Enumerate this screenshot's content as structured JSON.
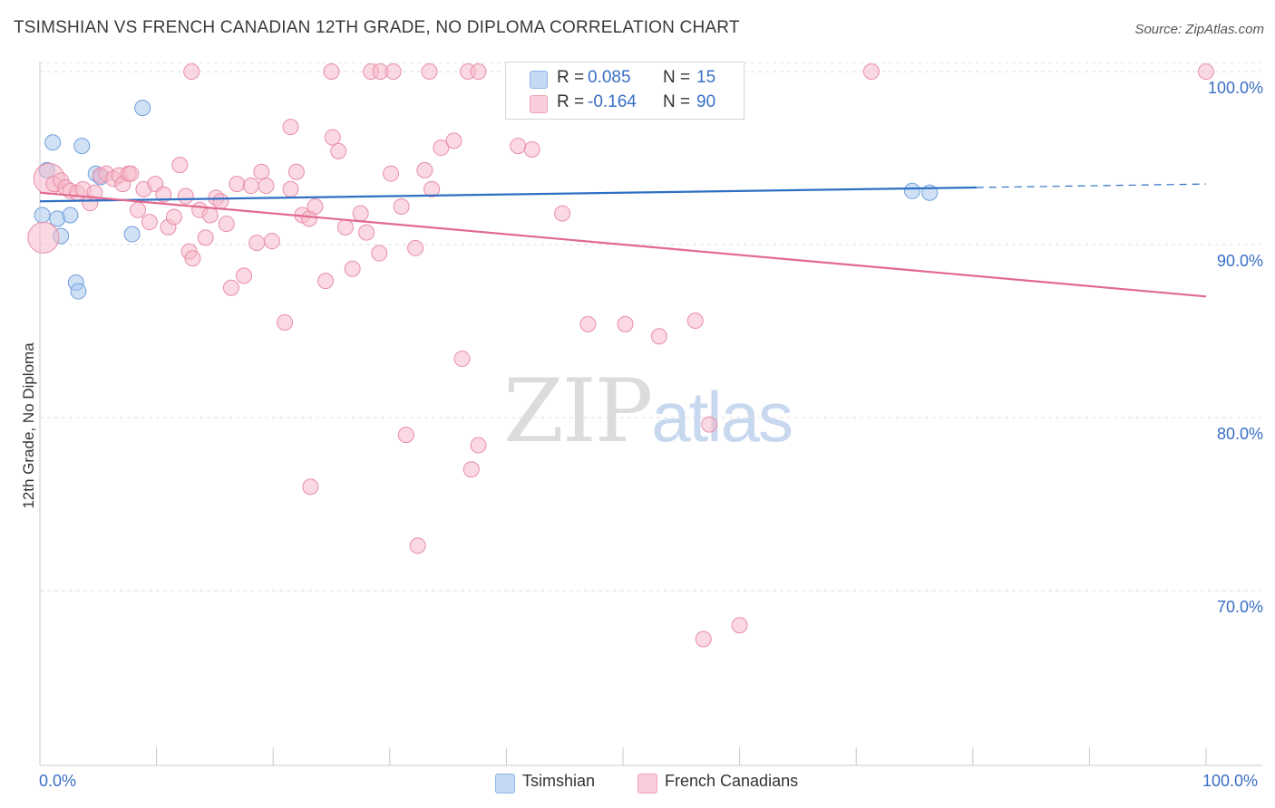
{
  "header": {
    "title": "TSIMSHIAN VS FRENCH CANADIAN 12TH GRADE, NO DIPLOMA CORRELATION CHART",
    "source": "Source: ZipAtlas.com"
  },
  "watermark": {
    "zip": "ZIP",
    "atlas": "atlas"
  },
  "legend_box": {
    "rows": [
      {
        "r_label": "R =",
        "r_value": "0.085",
        "n_label": "N =",
        "n_value": "15",
        "color": "#a9c8ee"
      },
      {
        "r_label": "R =",
        "r_value": "-0.164",
        "n_label": "N =",
        "n_value": "90",
        "color": "#f6b9cb"
      }
    ]
  },
  "bottom_legend": [
    {
      "label": "Tsimshian",
      "color": "#a9c8ee"
    },
    {
      "label": "French Canadians",
      "color": "#f6b9cb"
    }
  ],
  "chart_data": {
    "type": "scatter",
    "title": "TSIMSHIAN VS FRENCH CANADIAN 12TH GRADE, NO DIPLOMA CORRELATION CHART",
    "xlabel": "",
    "ylabel": "12th Grade, No Diploma",
    "xlim": [
      0,
      100
    ],
    "ylim": [
      60,
      100.5
    ],
    "x_tick_labels": [
      "0.0%",
      "100.0%"
    ],
    "y_ticks": [
      {
        "value": 100,
        "label": "100.0%"
      },
      {
        "value": 90,
        "label": "90.0%"
      },
      {
        "value": 80,
        "label": "80.0%"
      },
      {
        "value": 70,
        "label": "70.0%"
      }
    ],
    "grid": true,
    "legend_position": "top-center",
    "series": [
      {
        "name": "Tsimshian",
        "color": "#a9c8ee",
        "stroke": "#6f9fdc",
        "trend_color": "#2f6fc4",
        "trend": {
          "x": [
            0,
            80.3
          ],
          "y": [
            92.5,
            93.3
          ],
          "dashed_to": [
            100,
            93.5
          ]
        },
        "points": [
          [
            0.2,
            91.7
          ],
          [
            0.6,
            94.3
          ],
          [
            1.1,
            95.9
          ],
          [
            1.5,
            91.5
          ],
          [
            1.8,
            90.5
          ],
          [
            2.6,
            91.7
          ],
          [
            3.1,
            87.8
          ],
          [
            3.3,
            87.3
          ],
          [
            3.6,
            95.7
          ],
          [
            4.8,
            94.1
          ],
          [
            5.2,
            93.9
          ],
          [
            7.9,
            90.6
          ],
          [
            8.8,
            97.9
          ],
          [
            74.8,
            93.1
          ],
          [
            76.3,
            93.0
          ]
        ]
      },
      {
        "name": "French Canadians",
        "color": "#f6b9cb",
        "stroke": "#e98daa",
        "trend_color": "#e2698f",
        "trend": {
          "x": [
            0,
            100
          ],
          "y": [
            93.0,
            87.0
          ]
        },
        "points": [
          [
            0.3,
            90.4
          ],
          [
            0.8,
            93.8
          ],
          [
            1.2,
            93.5
          ],
          [
            1.8,
            93.7
          ],
          [
            2.2,
            93.3
          ],
          [
            2.6,
            93.1
          ],
          [
            3.2,
            93.0
          ],
          [
            3.7,
            93.2
          ],
          [
            4.3,
            92.4
          ],
          [
            4.7,
            93.0
          ],
          [
            5.2,
            94.0
          ],
          [
            5.7,
            94.1
          ],
          [
            6.3,
            93.8
          ],
          [
            6.8,
            94.0
          ],
          [
            7.1,
            93.5
          ],
          [
            7.6,
            94.1
          ],
          [
            8.4,
            92.0
          ],
          [
            8.9,
            93.2
          ],
          [
            9.4,
            91.3
          ],
          [
            9.9,
            93.5
          ],
          [
            10.6,
            92.9
          ],
          [
            11.0,
            91.0
          ],
          [
            11.5,
            91.6
          ],
          [
            12.0,
            94.6
          ],
          [
            12.5,
            92.8
          ],
          [
            12.8,
            89.6
          ],
          [
            13.1,
            89.2
          ],
          [
            13.7,
            92.0
          ],
          [
            14.2,
            90.4
          ],
          [
            14.6,
            91.7
          ],
          [
            15.1,
            92.7
          ],
          [
            15.5,
            92.5
          ],
          [
            16.0,
            91.2
          ],
          [
            16.4,
            87.5
          ],
          [
            16.9,
            93.5
          ],
          [
            17.5,
            88.2
          ],
          [
            18.1,
            93.4
          ],
          [
            18.6,
            90.1
          ],
          [
            19.0,
            94.2
          ],
          [
            19.4,
            93.4
          ],
          [
            19.9,
            90.2
          ],
          [
            21.0,
            85.5
          ],
          [
            21.5,
            93.2
          ],
          [
            22.0,
            94.2
          ],
          [
            22.5,
            91.7
          ],
          [
            23.1,
            91.5
          ],
          [
            23.6,
            92.2
          ],
          [
            24.5,
            87.9
          ],
          [
            25.1,
            96.2
          ],
          [
            25.6,
            95.4
          ],
          [
            26.2,
            91.0
          ],
          [
            26.8,
            88.6
          ],
          [
            27.5,
            91.8
          ],
          [
            28.0,
            90.7
          ],
          [
            29.1,
            89.5
          ],
          [
            30.1,
            94.1
          ],
          [
            31.0,
            92.2
          ],
          [
            32.2,
            89.8
          ],
          [
            33.0,
            94.3
          ],
          [
            33.6,
            93.2
          ],
          [
            34.4,
            95.6
          ],
          [
            35.5,
            96.0
          ],
          [
            36.2,
            83.4
          ],
          [
            37.0,
            77.0
          ],
          [
            37.6,
            78.4
          ],
          [
            32.4,
            72.6
          ],
          [
            23.2,
            76.0
          ],
          [
            31.4,
            79.0
          ],
          [
            25.0,
            100.0
          ],
          [
            28.4,
            100.0
          ],
          [
            29.2,
            100.0
          ],
          [
            30.3,
            100.0
          ],
          [
            33.4,
            100.0
          ],
          [
            36.7,
            100.0
          ],
          [
            37.6,
            100.0
          ],
          [
            41.0,
            95.7
          ],
          [
            42.2,
            95.5
          ],
          [
            44.8,
            91.8
          ],
          [
            47.0,
            85.4
          ],
          [
            50.2,
            85.4
          ],
          [
            53.1,
            84.7
          ],
          [
            56.2,
            85.6
          ],
          [
            57.4,
            79.6
          ],
          [
            56.9,
            67.2
          ],
          [
            60.0,
            68.0
          ],
          [
            71.3,
            100.0
          ],
          [
            100.0,
            100.0
          ],
          [
            13.0,
            100.0
          ],
          [
            21.5,
            96.8
          ],
          [
            7.8,
            94.1
          ]
        ]
      }
    ]
  }
}
